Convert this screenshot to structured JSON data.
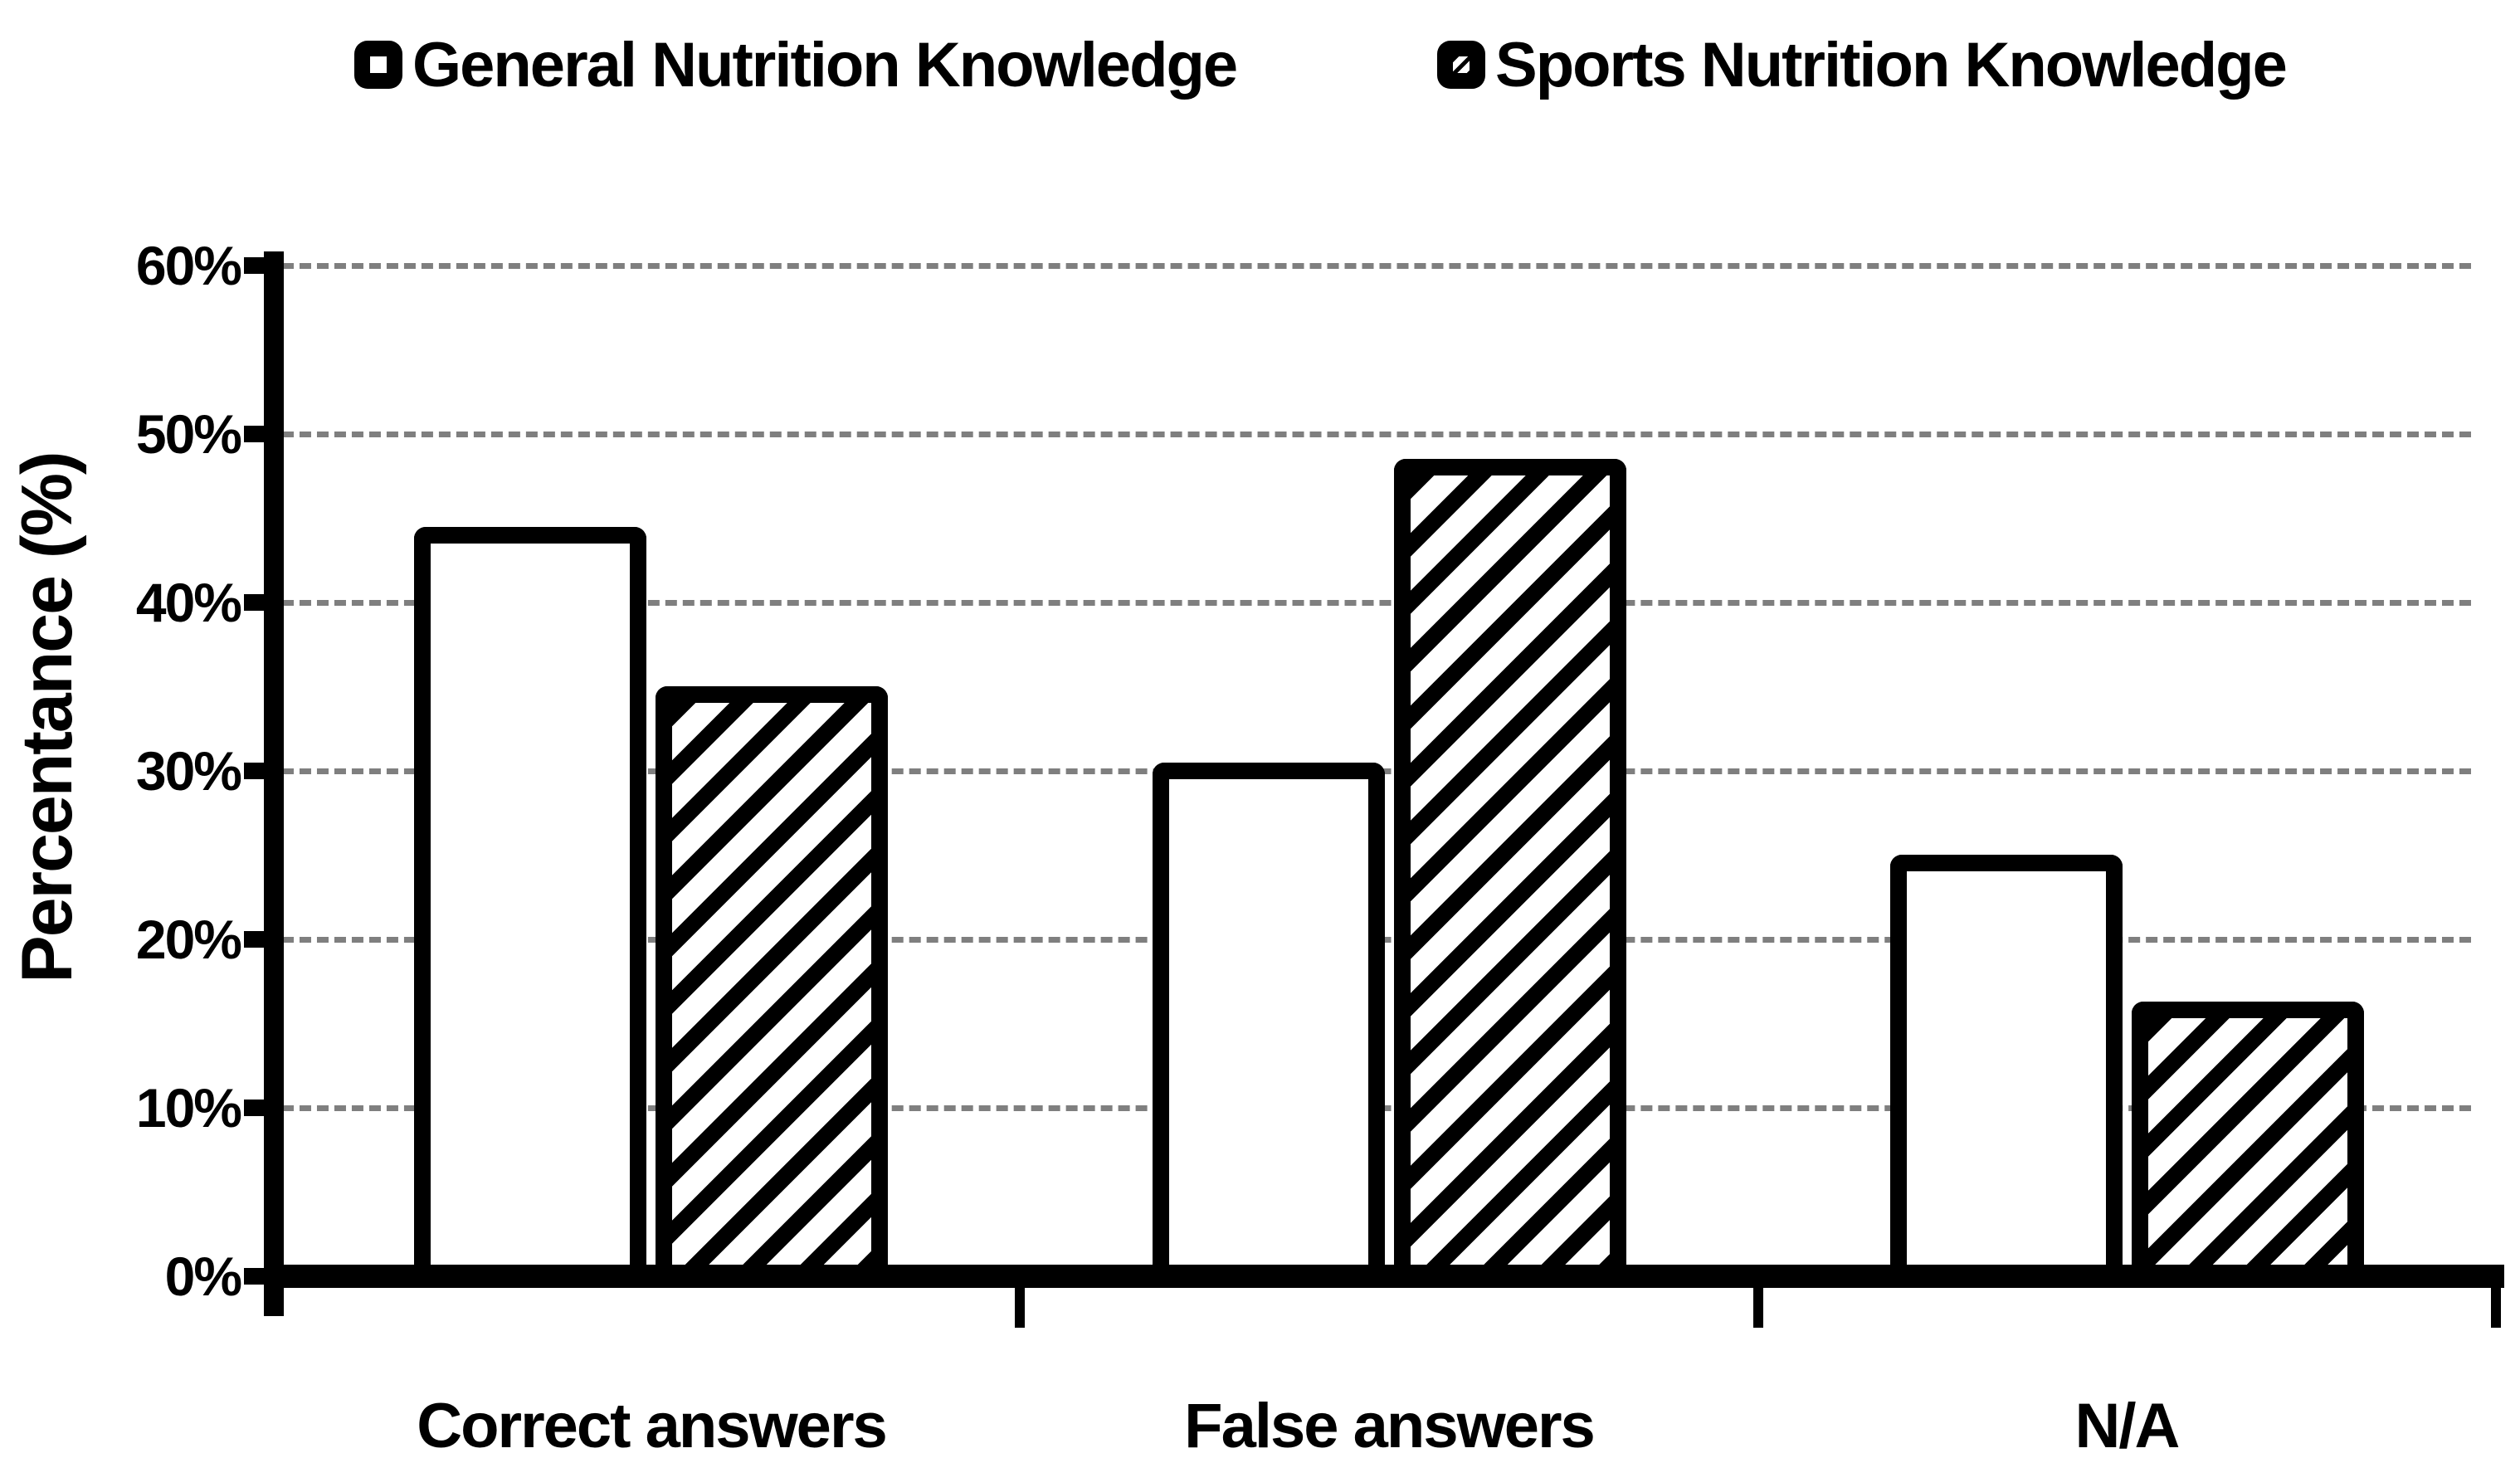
{
  "legend": {
    "position": "top",
    "items": [
      {
        "icon": "white-square-marker",
        "label": "General Nutrition Knowledge"
      },
      {
        "icon": "hatched-square-marker",
        "label": "Sports Nutrition Knowledge"
      }
    ]
  },
  "chart_data": {
    "type": "bar",
    "title": "",
    "categories": [
      "Correct answers",
      "False answers",
      "N/A"
    ],
    "series": [
      {
        "name": "General Nutrition Knowledge",
        "style": "white",
        "values": [
          44.5,
          30.5,
          25.0
        ]
      },
      {
        "name": "Sports Nutrition Knowledge",
        "style": "hatch",
        "values": [
          35.0,
          48.5,
          16.3
        ]
      }
    ],
    "xlabel": "",
    "ylabel": "Percentance (%)",
    "ylim": [
      0,
      60
    ],
    "ytick_step": 10,
    "ytick_labels": [
      "0%",
      "10%",
      "20%",
      "30%",
      "40%",
      "50%",
      "60%"
    ],
    "grid": "horizontal-dashed",
    "legend_position": "top",
    "colors": {
      "background": "#ffffff",
      "bar_fill": "#ffffff",
      "bar_border": "#000000",
      "hatch": "#000000",
      "gridline": "#7f7f7f",
      "text": "#000000"
    }
  }
}
